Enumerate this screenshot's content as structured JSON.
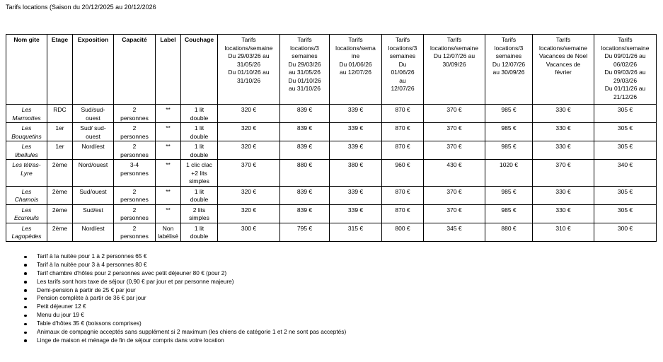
{
  "title": "Tarifs locations (Saison du 20/12/2025 au 20/12/2026",
  "table": {
    "headers": [
      "Nom gite",
      "Etage",
      "Exposition",
      "Capacité",
      "Label",
      "Couchage",
      "Tarifs\nlocations/semaine\nDu 29/03/26 au\n31/05/26\nDu 01/10/26 au\n31/10/26",
      "Tarifs\nlocations/3\nsemaines\nDu 29/03/26\nau 31/05/26\nDu 01/10/26\nau 31/10/26",
      "Tarifs\nlocations/sema\nine\nDu 01/06/26\nau 12/07/26",
      "Tarifs\nlocations/3\nsemaines\nDu\n01/06/26\nau\n12/07/26",
      "Tarifs\nlocations/semaine\nDu 12/07/26 au\n30/09/26",
      "Tarifs\nlocations/3\nsemaines\nDu 12/07/26\nau 30/09/26",
      "Tarifs\nlocations/semaine\nVacances de Noel\nVacances de\nfévrier",
      "Tarifs\nlocations/semaine\nDu 09/01/26 au\n06/02/26\nDu 09/03/26 au\n29/03/26\nDu 01/11/26 au\n21/12/26"
    ],
    "rows": [
      [
        "Les\nMarmottes",
        "RDC",
        "Sud/sud-\nouest",
        "2\npersonnes",
        "**",
        "1 lit\ndouble",
        "320 €",
        "839 €",
        "339 €",
        "870 €",
        "370 €",
        "985 €",
        "330 €",
        "305 €"
      ],
      [
        "Les\nBouquetins",
        "1er",
        "Sud/ sud-\nouest",
        "2\npersonnes",
        "**",
        "1 lit\ndouble",
        "320 €",
        "839 €",
        "339 €",
        "870 €",
        "370 €",
        "985 €",
        "330 €",
        "305 €"
      ],
      [
        "Les\nlibellules",
        "1er",
        "Nord/est",
        "2\npersonnes",
        "**",
        "1 lit\ndouble",
        "320 €",
        "839 €",
        "339 €",
        "870 €",
        "370 €",
        "985 €",
        "330 €",
        "305 €"
      ],
      [
        "Les tétras-\nLyre",
        "2ème",
        "Nord/ouest",
        "3-4\npersonnes",
        "**",
        "1 clic clac\n+2 lits\nsimples",
        "370 €",
        "880 €",
        "380 €",
        "960 €",
        "430 €",
        "1020 €",
        "370 €",
        "340 €"
      ],
      [
        "Les\nChamois",
        "2ème",
        "Sud/ouest",
        "2\npersonnes",
        "**",
        "1 lit\ndouble",
        "320 €",
        "839 €",
        "339 €",
        "870 €",
        "370 €",
        "985 €",
        "330 €",
        "305 €"
      ],
      [
        "Les\nEcureuils",
        "2ème",
        "Sud/est",
        "2\npersonnes",
        "**",
        "2 lits\nsimples",
        "320 €",
        "839 €",
        "339 €",
        "870 €",
        "370 €",
        "985 €",
        "330 €",
        "305 €"
      ],
      [
        "Les\nLagopèdes",
        "2ème",
        "Nord/est",
        "2\npersonnes",
        "Non\nlabélisé",
        "1 lit\ndouble",
        "300 €",
        "795 €",
        "315 €",
        "800 €",
        "345 €",
        "880 €",
        "310 €",
        "300 €"
      ]
    ]
  },
  "notes": [
    "Tarif à la nuitée pour 1 à 2 personnes 65 €",
    "Tarif à la nuitée pour 3 à 4 personnes 80 €",
    "Tarif chambre d'hôtes pour 2 personnes avec petit déjeuner 80 € (pour 2)",
    "Les tarifs sont hors taxe de séjour (0,90 € par jour et par personne majeure)",
    "Demi-pension à partir de 25 € par jour",
    "Pension complète à partir de 36 € par jour",
    "Petit déjeuner 12 €",
    "Menu du jour 19 €",
    "Table d'hôtes 35 € (boissons comprises)",
    "Animaux de compagnie acceptés sans supplément si 2 maximum (les chiens de catégorie 1 et 2 ne sont pas acceptés)",
    "Linge de maison et ménage de fin de séjour compris dans votre location"
  ]
}
